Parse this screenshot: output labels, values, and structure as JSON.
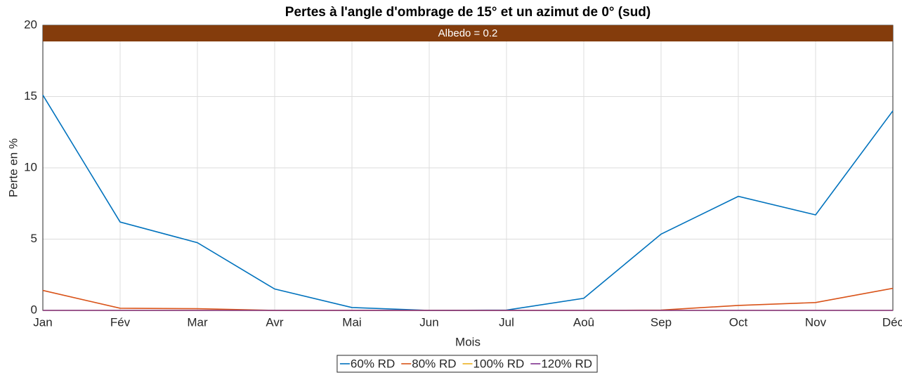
{
  "chart_data": {
    "type": "line",
    "title": "Pertes à l'angle d'ombrage de 15° et un azimut de 0° (sud)",
    "annotation": "Albedo = 0.2",
    "xlabel": "Mois",
    "ylabel": "Perte en %",
    "categories": [
      "Jan",
      "Fév",
      "Mar",
      "Avr",
      "Mai",
      "Jun",
      "Jul",
      "Aoû",
      "Sep",
      "Oct",
      "Nov",
      "Déc"
    ],
    "series": [
      {
        "name": "60% RD",
        "color": "#0072bd",
        "values": [
          15.1,
          6.2,
          4.75,
          1.5,
          0.2,
          0,
          0.02,
          0.85,
          5.35,
          8.0,
          6.7,
          14.0
        ]
      },
      {
        "name": "80% RD",
        "color": "#d95319",
        "values": [
          1.4,
          0.15,
          0.12,
          0,
          0,
          0,
          0,
          0,
          0.02,
          0.35,
          0.55,
          1.55
        ]
      },
      {
        "name": "100% RD",
        "color": "#edb120",
        "values": [
          0,
          0,
          0,
          0,
          0,
          0,
          0,
          0,
          0,
          0,
          0,
          0
        ]
      },
      {
        "name": "120% RD",
        "color": "#7e2f8e",
        "values": [
          0,
          0,
          0,
          0,
          0,
          0,
          0,
          0,
          0,
          0,
          0,
          0
        ]
      }
    ],
    "ylim": [
      0,
      20
    ],
    "yticks": [
      0,
      5,
      10,
      15,
      20
    ],
    "grid": true,
    "legend": "bottom"
  }
}
